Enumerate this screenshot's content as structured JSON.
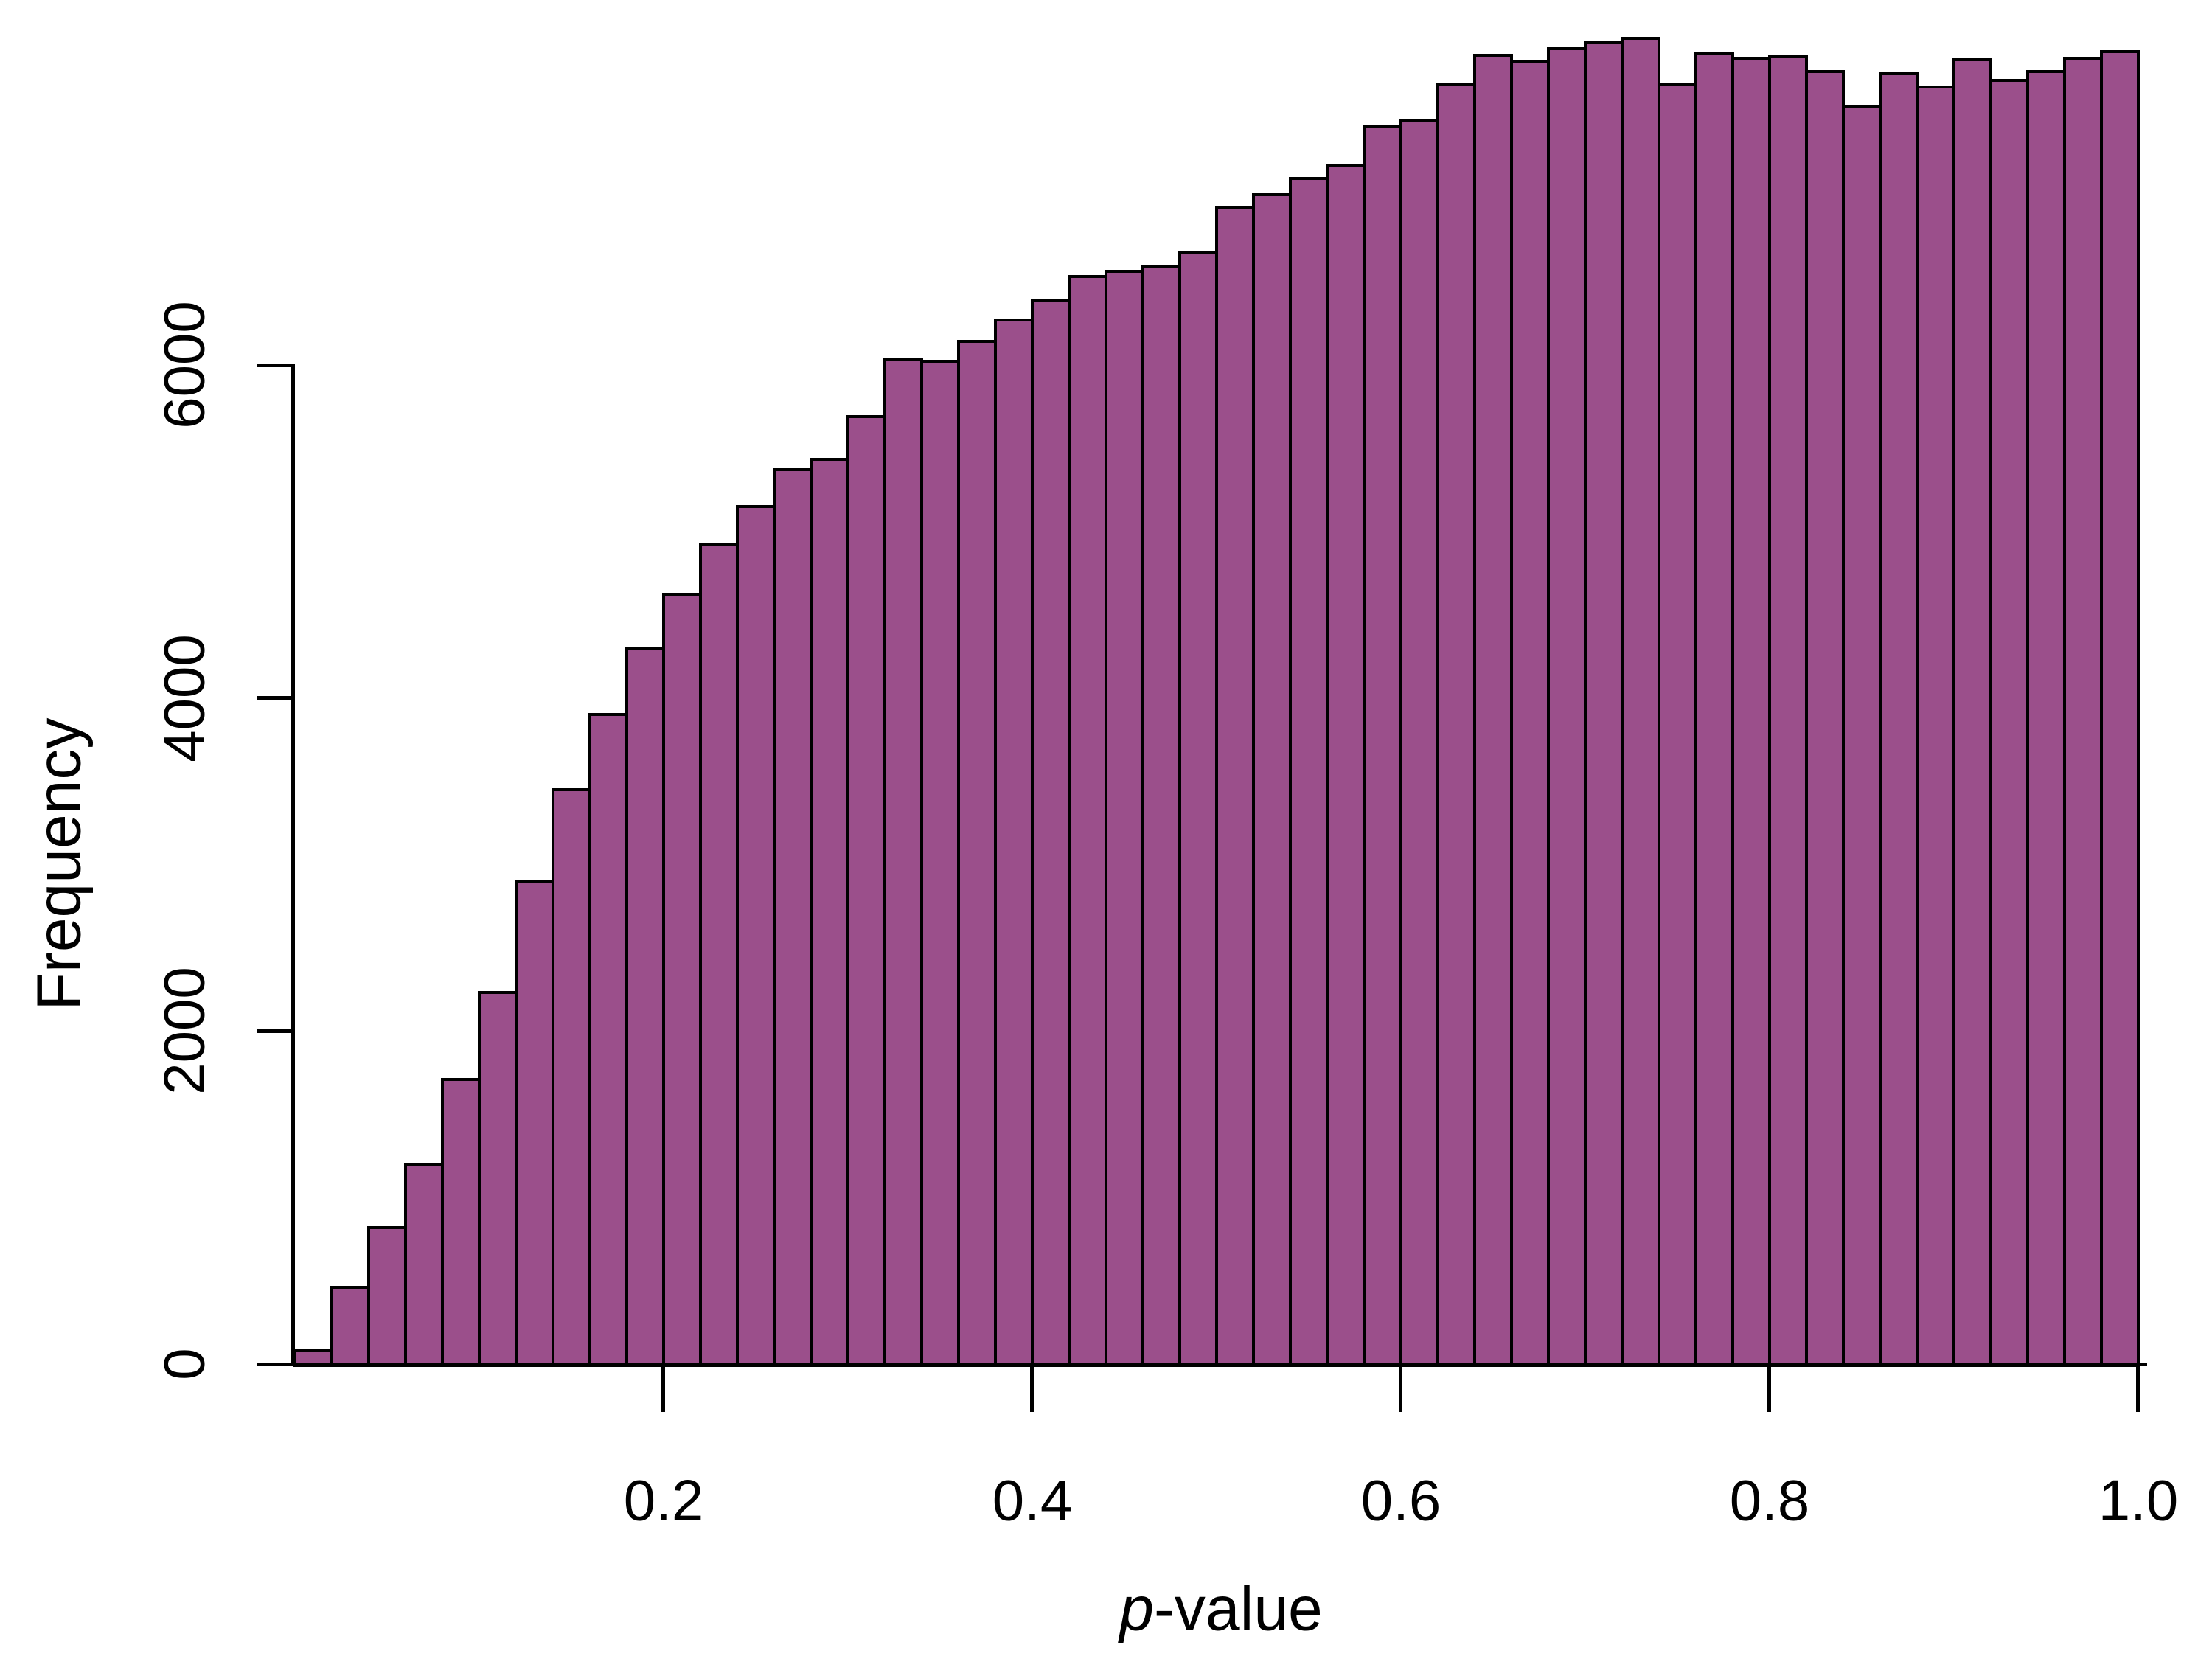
{
  "figure": {
    "background": "#ffffff",
    "axis_color": "#000000"
  },
  "chart_data": {
    "type": "bar",
    "subtype": "histogram",
    "title": "",
    "xlabel_italic": "p",
    "xlabel_rest": "-value",
    "ylabel": "Frequency",
    "x_ticks": [
      "0.2",
      "0.4",
      "0.6",
      "0.8",
      "1.0"
    ],
    "x_tick_values": [
      0.2,
      0.4,
      0.6,
      0.8,
      1.0
    ],
    "y_ticks": [
      "0",
      "2000",
      "4000",
      "6000"
    ],
    "y_tick_values": [
      0,
      2000,
      4000,
      6000
    ],
    "xlim": [
      0,
      1
    ],
    "ylim": [
      0,
      8000
    ],
    "grid": "off",
    "legend": "none",
    "bin_start": 0.0,
    "bin_width": 0.02,
    "bar_fill": "#9B4F8B",
    "bar_border": "#000000",
    "values": [
      90,
      470,
      830,
      1210,
      1720,
      2240,
      2910,
      3460,
      3910,
      4310,
      4630,
      4930,
      5160,
      5380,
      5440,
      5700,
      6040,
      6030,
      6150,
      6280,
      6400,
      6540,
      6570,
      6600,
      6680,
      6950,
      7030,
      7130,
      7210,
      7440,
      7480,
      7690,
      7870,
      7830,
      7910,
      7950,
      7970,
      7690,
      7880,
      7850,
      7860,
      7770,
      7560,
      7760,
      7680,
      7840,
      7720,
      7770,
      7850,
      7890
    ]
  }
}
